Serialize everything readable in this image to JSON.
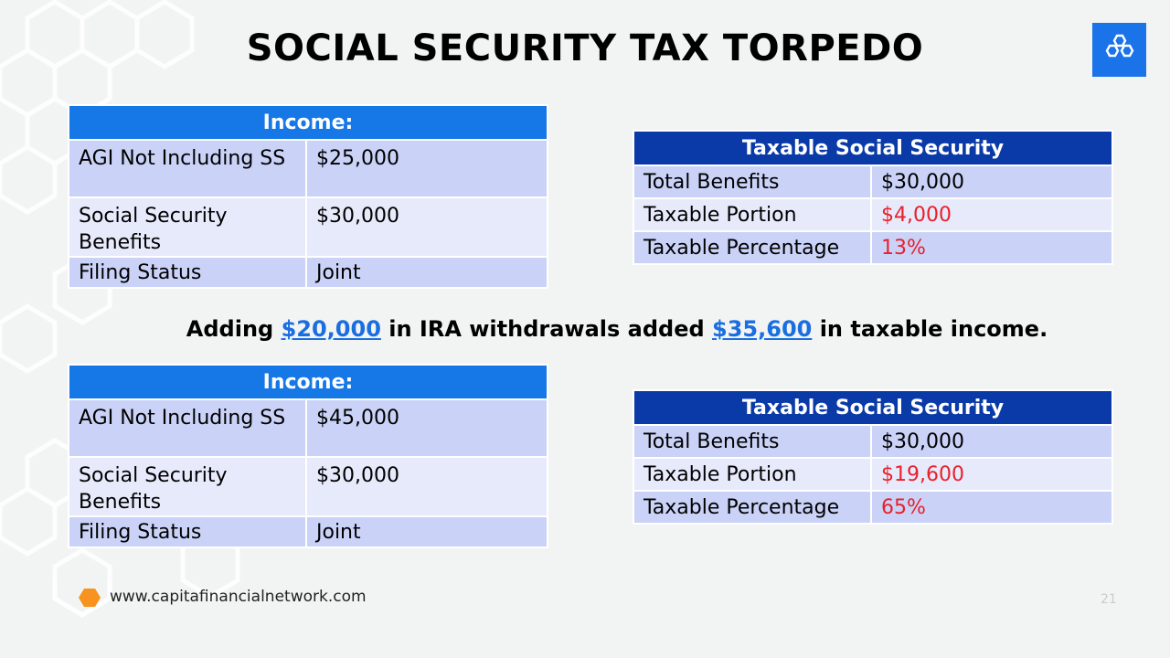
{
  "slide": {
    "title": "SOCIAL SECURITY TAX TORPEDO",
    "message": {
      "prefix": "Adding ",
      "amount1": "$20,000",
      "middle": " in IRA withdrawals added ",
      "amount2": "$35,600",
      "suffix": " in taxable income."
    },
    "footer_url": "www.capitafinancialnetwork.com",
    "page_number": "21",
    "colors": {
      "accent_blue": "#1677e6",
      "dark_blue": "#0a3aa8",
      "highlight_red": "#e8202a",
      "logo_orange": "#f7931e"
    },
    "icons": [
      "hexagon-cluster-logo-icon",
      "orange-hexagon-icon"
    ]
  },
  "before": {
    "income": {
      "header": "Income:",
      "rows": [
        {
          "label": "AGI Not Including SS",
          "value": "$25,000"
        },
        {
          "label": "Social Security Benefits",
          "value": "$30,000"
        },
        {
          "label": "Filing Status",
          "value": "Joint"
        }
      ]
    },
    "taxable_ss": {
      "header": "Taxable Social Security",
      "rows": [
        {
          "label": "Total Benefits",
          "value": "$30,000"
        },
        {
          "label": "Taxable Portion",
          "value": "$4,000"
        },
        {
          "label": "Taxable Percentage",
          "value": "13%"
        }
      ]
    }
  },
  "after": {
    "income": {
      "header": "Income:",
      "rows": [
        {
          "label": "AGI Not Including SS",
          "value": "$45,000"
        },
        {
          "label": "Social Security Benefits",
          "value": "$30,000"
        },
        {
          "label": "Filing Status",
          "value": "Joint"
        }
      ]
    },
    "taxable_ss": {
      "header": "Taxable Social Security",
      "rows": [
        {
          "label": "Total Benefits",
          "value": "$30,000"
        },
        {
          "label": "Taxable Portion",
          "value": "$19,600"
        },
        {
          "label": "Taxable Percentage",
          "value": "65%"
        }
      ]
    }
  }
}
